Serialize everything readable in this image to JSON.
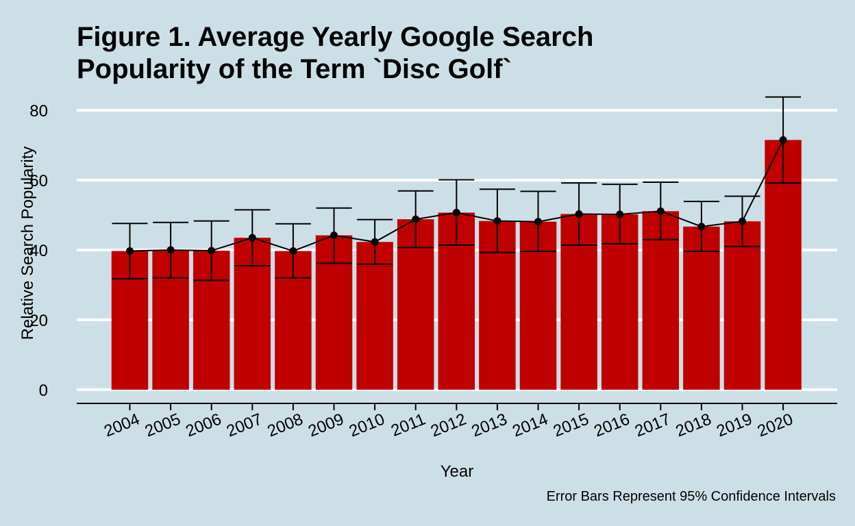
{
  "chart_data": {
    "type": "bar",
    "title_line1": "Figure 1. Average Yearly Google Search",
    "title_line2": "Popularity of the Term `Disc Golf`",
    "xlabel": "Year",
    "ylabel": "Relative Search Popularity",
    "caption": "Error Bars Represent 95% Confidence Intervals",
    "categories": [
      "2004",
      "2005",
      "2006",
      "2007",
      "2008",
      "2009",
      "2010",
      "2011",
      "2012",
      "2013",
      "2014",
      "2015",
      "2016",
      "2017",
      "2018",
      "2019",
      "2020"
    ],
    "values": [
      39.7,
      40.0,
      39.8,
      43.5,
      39.7,
      44.2,
      42.3,
      48.8,
      50.7,
      48.3,
      48.1,
      50.3,
      50.2,
      51.1,
      46.7,
      48.2,
      71.5
    ],
    "ci_lower": [
      31.8,
      32.0,
      31.3,
      35.5,
      32.0,
      36.2,
      35.9,
      40.7,
      41.4,
      39.3,
      39.6,
      41.4,
      41.8,
      43.0,
      39.6,
      41.0,
      59.2
    ],
    "ci_upper": [
      47.6,
      47.9,
      48.3,
      51.5,
      47.5,
      52.0,
      48.7,
      56.9,
      60.1,
      57.4,
      56.8,
      59.2,
      58.8,
      59.4,
      53.9,
      55.4,
      83.8
    ],
    "yticks": [
      0,
      20,
      40,
      60,
      80
    ],
    "ylim": [
      0,
      85
    ],
    "grid": "horizontal",
    "colors": {
      "bar": "#c00000",
      "line": "#000000",
      "background": "#cddfe6",
      "grid": "#ffffff"
    }
  }
}
